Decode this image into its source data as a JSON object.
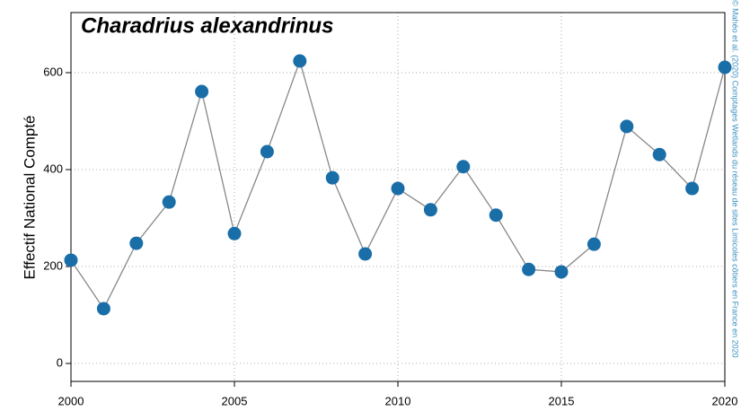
{
  "chart_data": {
    "type": "line",
    "title": "Charadrius alexandrinus",
    "y_label": "Effectif National Compté",
    "credit": "© Mahéo et al. (2020) Comptages Wetlands du réseau de sites Limicoles côtiers en France en 2020",
    "x": [
      2000,
      2001,
      2002,
      2003,
      2004,
      2005,
      2006,
      2007,
      2008,
      2009,
      2010,
      2011,
      2012,
      2013,
      2014,
      2015,
      2016,
      2017,
      2018,
      2019,
      2020
    ],
    "series": [
      {
        "name": "Charadrius alexandrinus",
        "color": "#1a6ea8",
        "line_color": "#888888",
        "values": [
          213,
          113,
          248,
          333,
          561,
          268,
          437,
          624,
          383,
          226,
          361,
          317,
          406,
          306,
          194,
          189,
          246,
          489,
          431,
          361,
          611
        ]
      }
    ],
    "xlim": [
      2000,
      2020
    ],
    "xticks": [
      2000,
      2005,
      2010,
      2015,
      2020
    ],
    "ylim": [
      -37,
      724
    ],
    "yticks": [
      0,
      200,
      400,
      600
    ],
    "grid": true
  }
}
